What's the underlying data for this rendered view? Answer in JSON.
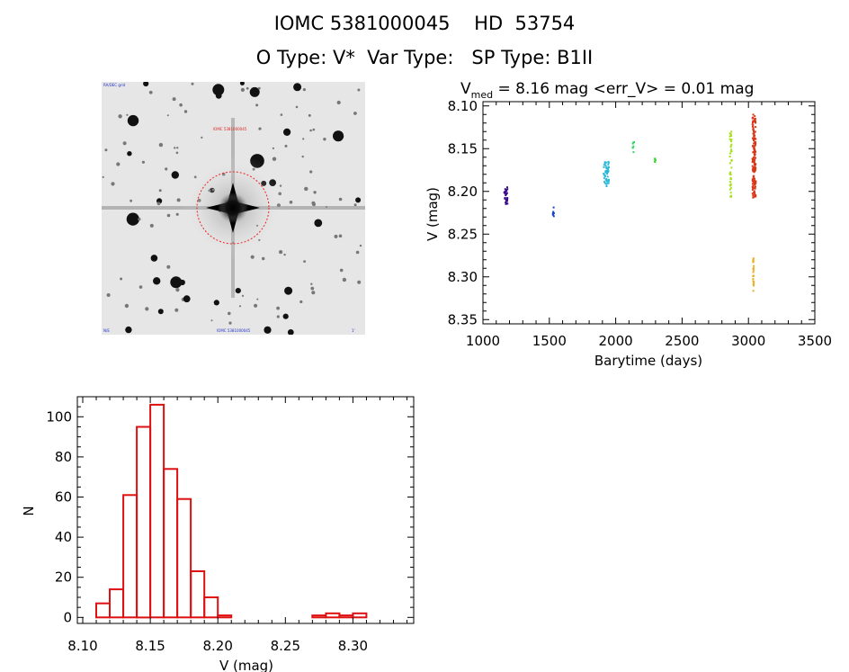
{
  "header": {
    "line1": "IOMC 5381000045    HD  53754",
    "line2": "O Type: V*  Var Type:   SP Type: B1II"
  },
  "image_panel": {
    "label_top_left": "RA/DEC grid",
    "label_center": "IOMC 5381000045",
    "label_bottom_left": "N/E",
    "label_bottom_center": "IOMC 5381000045",
    "label_bottom_right": "1'"
  },
  "colors": {
    "histogram": "#dd1111",
    "circle": "#ee2222"
  },
  "chart_data": [
    {
      "type": "scatter",
      "title": "V_med = 8.16 mag <err_V> = 0.01 mag",
      "title_parts": {
        "v": "V",
        "sub": "med",
        "rest": " = 8.16 mag <err_V> = 0.01 mag"
      },
      "xlabel": "Barytime (days)",
      "ylabel": "V (mag)",
      "xlim": [
        1000,
        3500
      ],
      "ylim": [
        8.355,
        8.095
      ],
      "y_inverted": true,
      "xticks": [
        1000,
        1500,
        2000,
        2500,
        3000,
        3500
      ],
      "yticks": [
        8.1,
        8.15,
        8.2,
        8.25,
        8.3,
        8.35
      ],
      "ytick_labels": [
        "8.10",
        "8.15",
        "8.20",
        "8.25",
        "8.30",
        "8.35"
      ],
      "series": [
        {
          "color": "#3a0a8c",
          "x_range": [
            1160,
            1185
          ],
          "y_range": [
            8.195,
            8.215
          ]
        },
        {
          "color": "#1840c8",
          "x_range": [
            1525,
            1535
          ],
          "y_range": [
            8.218,
            8.23
          ]
        },
        {
          "color": "#28b8d8",
          "x_range": [
            1910,
            1950
          ],
          "y_range": [
            8.165,
            8.195
          ]
        },
        {
          "color": "#2ed860",
          "x_range": [
            2125,
            2140
          ],
          "y_range": [
            8.14,
            8.155
          ]
        },
        {
          "color": "#36d830",
          "x_range": [
            2295,
            2305
          ],
          "y_range": [
            8.16,
            8.166
          ]
        },
        {
          "color": "#a8e020",
          "x_range": [
            2860,
            2875
          ],
          "y_range": [
            8.13,
            8.215
          ]
        },
        {
          "color": "#d83818",
          "x_range": [
            3030,
            3055
          ],
          "y_range": [
            8.11,
            8.21
          ]
        },
        {
          "color": "#e8b020",
          "x_range": [
            3035,
            3040
          ],
          "y_range": [
            8.278,
            8.318
          ]
        }
      ]
    },
    {
      "type": "bar",
      "subtype": "histogram",
      "xlabel": "V (mag)",
      "ylabel": "N",
      "xlim": [
        8.096,
        8.345
      ],
      "ylim": [
        -3,
        110
      ],
      "xticks": [
        8.1,
        8.15,
        8.2,
        8.25,
        8.3
      ],
      "xtick_labels": [
        "8.10",
        "8.15",
        "8.20",
        "8.25",
        "8.30"
      ],
      "yticks": [
        0,
        20,
        40,
        60,
        80,
        100
      ],
      "bin_width": 0.01,
      "bin_starts": [
        8.11,
        8.12,
        8.13,
        8.14,
        8.15,
        8.16,
        8.17,
        8.18,
        8.19,
        8.2,
        8.21,
        8.22,
        8.23,
        8.24,
        8.25,
        8.26,
        8.27,
        8.28,
        8.29,
        8.3,
        8.31
      ],
      "values": [
        7,
        14,
        61,
        95,
        106,
        74,
        59,
        23,
        10,
        1,
        0,
        0,
        0,
        0,
        0,
        0,
        1,
        2,
        1,
        2,
        0
      ]
    }
  ]
}
